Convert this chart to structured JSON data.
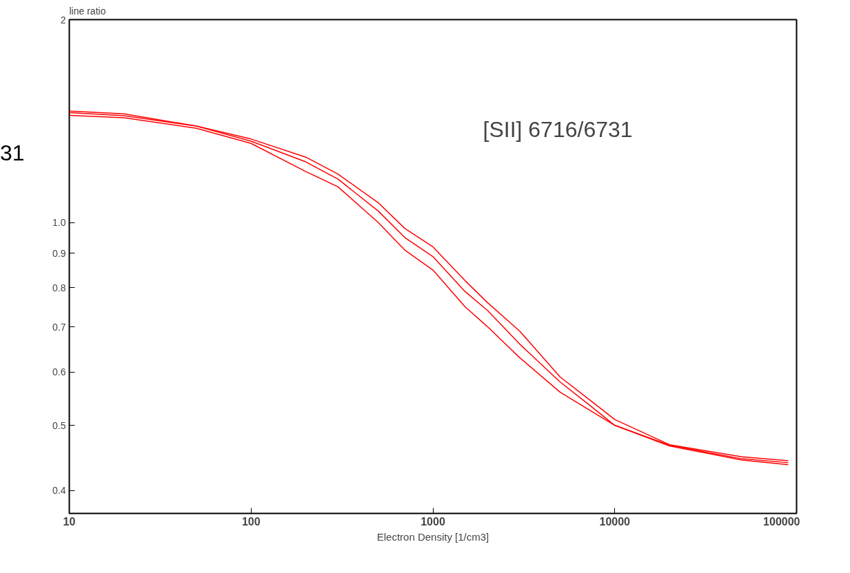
{
  "chart_data": {
    "type": "line",
    "ylabel": "line ratio",
    "xlabel": "Electron Density [1/cm3]",
    "log": "xy",
    "grid": false,
    "marker": "none",
    "line_style": "solid",
    "annotations": [
      "[SII]  6716/6731",
      "31"
    ],
    "xlim": [
      10,
      100000
    ],
    "xticks": [
      10,
      100,
      1000,
      10000,
      100000
    ],
    "ylim": [
      0.37,
      2
    ],
    "yticks": [
      {
        "value": 0.4,
        "label": "0.4"
      },
      {
        "value": 0.5,
        "label": "0.5"
      },
      {
        "value": 0.6,
        "label": "0.6"
      },
      {
        "value": 0.7,
        "label": "0.7"
      },
      {
        "value": 0.8,
        "label": "0.8"
      },
      {
        "value": 0.9,
        "label": "0.9"
      },
      {
        "value": 1,
        "label": "1.0"
      },
      2
    ],
    "x": [
      10,
      20,
      50,
      100,
      200,
      300,
      500,
      700,
      1000,
      1500,
      2000,
      3000,
      5000,
      7000,
      10000,
      20000,
      50000,
      90000
    ],
    "series": [
      {
        "color": "#ff0000",
        "values": [
          1.463,
          1.45,
          1.39,
          1.33,
          1.25,
          1.18,
          1.07,
          0.98,
          0.92,
          0.82,
          0.76,
          0.69,
          0.59,
          0.55,
          0.51,
          0.468,
          0.449,
          0.443
        ]
      },
      {
        "color": "#ff0000",
        "values": [
          1.456,
          1.44,
          1.39,
          1.32,
          1.23,
          1.16,
          1.04,
          0.95,
          0.89,
          0.79,
          0.74,
          0.66,
          0.58,
          0.54,
          0.5,
          0.467,
          0.446,
          0.44
        ]
      },
      {
        "color": "#ff0000",
        "values": [
          1.442,
          1.43,
          1.38,
          1.31,
          1.19,
          1.13,
          1.0,
          0.91,
          0.85,
          0.75,
          0.7,
          0.63,
          0.56,
          0.53,
          0.5,
          0.466,
          0.444,
          0.437
        ]
      }
    ]
  }
}
